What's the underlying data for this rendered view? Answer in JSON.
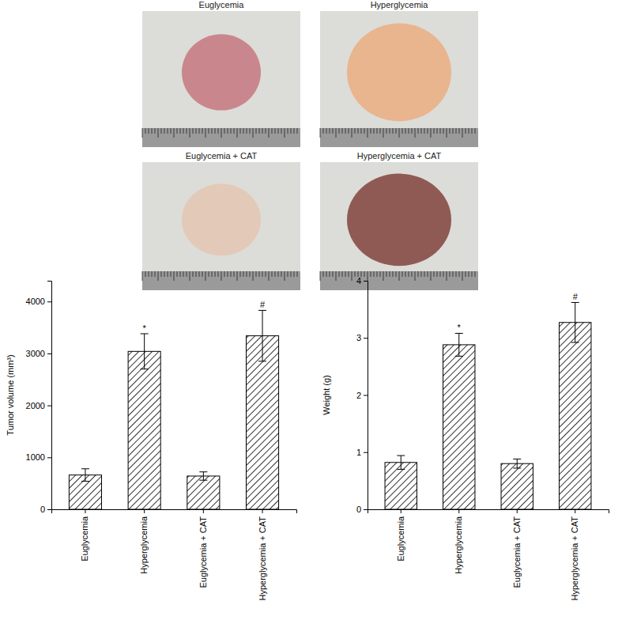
{
  "photos": [
    "Euglycemia",
    "Hyperglycemia",
    "Euglycemia + CAT",
    "Hyperglycemia + CAT"
  ],
  "chart_data": [
    {
      "type": "bar",
      "y_label": "Tumor volume (mm³)",
      "categories": [
        "Euglycemia",
        "Hyperglycemia",
        "Euglycemia + CAT",
        "Hyperglycemia + CAT"
      ],
      "values": [
        660,
        3040,
        640,
        3340
      ],
      "errors": [
        120,
        340,
        80,
        490
      ],
      "color": "#000000",
      "ylim": [
        0,
        4400
      ],
      "yticks": [
        0,
        1000,
        2000,
        3000,
        4000
      ],
      "grid": false,
      "annotations": [
        {
          "x": "Hyperglycemia",
          "text": "*"
        },
        {
          "x": "Hyperglycemia + CAT",
          "text": "#"
        }
      ]
    },
    {
      "type": "bar",
      "y_label": "Weight (g)",
      "categories": [
        "Euglycemia",
        "Hyperglycemia",
        "Euglycemia + CAT",
        "Hyperglycemia + CAT"
      ],
      "values": [
        0.82,
        2.88,
        0.8,
        3.27
      ],
      "errors": [
        0.12,
        0.2,
        0.08,
        0.35
      ],
      "color": "#000000",
      "ylim": [
        0,
        4
      ],
      "yticks": [
        0,
        1,
        2,
        3,
        4
      ],
      "grid": false,
      "annotations": [
        {
          "x": "Hyperglycemia",
          "text": "*"
        },
        {
          "x": "Hyperglycemia + CAT",
          "text": "#"
        }
      ]
    }
  ]
}
